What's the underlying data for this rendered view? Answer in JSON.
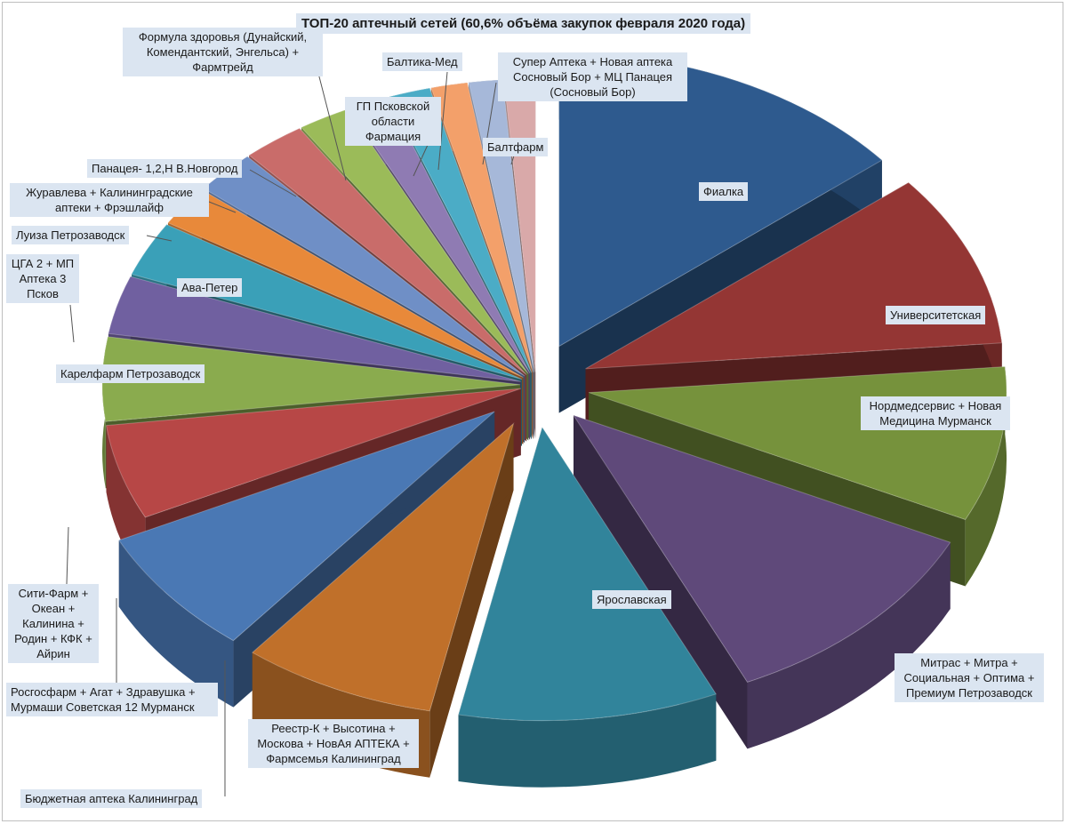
{
  "chart_data": {
    "type": "pie",
    "title": "ТОП-20 аптечный сетей (60,6% объёма закупок февраля 2020 года)",
    "slices": [
      {
        "label": "Фиалка",
        "value": 14.0,
        "color": "#2e5a8e"
      },
      {
        "label": "Университетская",
        "value": 9.5,
        "color": "#943634"
      },
      {
        "label": "Нордмедсервис + Новая Медицина Мурманск",
        "value": 8.5,
        "color": "#76923c"
      },
      {
        "label": "Митрас + Митра + Социальная + Оптима + Премиум Петрозаводск",
        "value": 11.0,
        "color": "#5f497a"
      },
      {
        "label": "Ярославская",
        "value": 10.0,
        "color": "#31849b"
      },
      {
        "label": "Реестр-К + Высотина + Москова + НовАя АПТЕКА + Фармсемья Калининград",
        "value": 7.5,
        "color": "#c0702a"
      },
      {
        "label": "Бюджетная аптека Калининград",
        "value": 7.0,
        "color": "#4a78b4"
      },
      {
        "label": "Росгосфарм + Агат + Здравушка + Мурмаши Советская 12 Мурманск",
        "value": 5.2,
        "color": "#b74746"
      },
      {
        "label": "Сити-Фарм + Океан + Калинина + Родин + КФК + Айрин",
        "value": 4.6,
        "color": "#8aab4e"
      },
      {
        "label": "Карелфарм Петрозаводск",
        "value": 3.2,
        "color": "#7060a0"
      },
      {
        "label": "ЦГА 2 + МП Аптека 3 Псков",
        "value": 3.0,
        "color": "#3aa0b8"
      },
      {
        "label": "Ава-Петер",
        "value": 2.2,
        "color": "#e8893a"
      },
      {
        "label": "Луиза Петрозаводск",
        "value": 2.4,
        "color": "#6f8fc6"
      },
      {
        "label": "Журавлева + Калининградские аптеки + Фрэшлайф",
        "value": 2.4,
        "color": "#c96c6a"
      },
      {
        "label": "Панацея- 1,2,Н В.Новгород",
        "value": 2.0,
        "color": "#9bbb59"
      },
      {
        "label": "Формула здоровья (Дунайский, Комендантский, Энгельса) + Фармтрейд",
        "value": 1.6,
        "color": "#8f7bb3"
      },
      {
        "label": "ГП Псковской области Фармация",
        "value": 1.6,
        "color": "#4bacc6"
      },
      {
        "label": "Балтика-Мед",
        "value": 1.4,
        "color": "#f3a06a"
      },
      {
        "label": "Супер Аптека + Новая аптека Сосновый Бор + МЦ Панацея (Сосновый Бор)",
        "value": 1.3,
        "color": "#a6b8d9"
      },
      {
        "label": "Балтфарм",
        "value": 1.2,
        "color": "#d9a9a9"
      }
    ]
  }
}
